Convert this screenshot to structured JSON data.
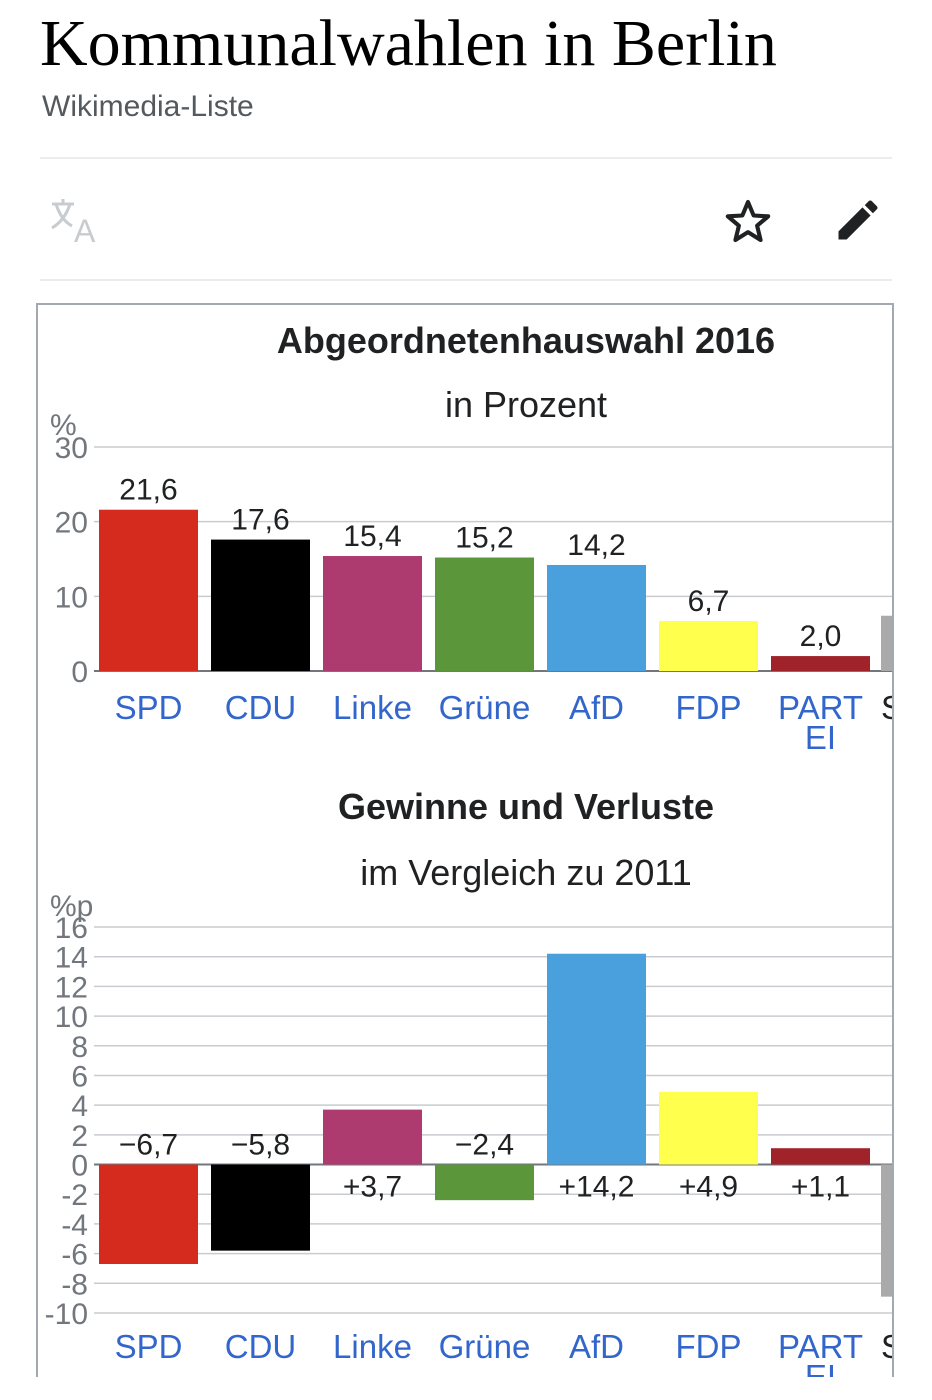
{
  "page": {
    "title": "Kommunalwahlen in Berlin",
    "description": "Wikimedia-Liste"
  },
  "toolbar": {
    "icons": [
      "translate-icon",
      "star-icon",
      "edit-icon"
    ]
  },
  "colors": {
    "SPD": "#d52b1e",
    "CDU": "#000000",
    "Linke": "#ae3b70",
    "Grüne": "#5b973a",
    "AfD": "#4a9fdd",
    "FDP": "#ffff4d",
    "PARTEI": "#a0232a",
    "Sonstige": "#aaaaaa",
    "link": "#3366cc"
  },
  "chart_data": [
    {
      "type": "bar",
      "title": "Abgeordnetenhauswahl 2016",
      "subtitle": "in Prozent",
      "ylabel": "%",
      "ylim": [
        0,
        30
      ],
      "yticks": [
        "0",
        "10",
        "20",
        "30"
      ],
      "categories": [
        "SPD",
        "CDU",
        "Linke",
        "Grüne",
        "AfD",
        "FDP",
        "PARTEI",
        "S"
      ],
      "category_labels": [
        "SPD",
        "CDU",
        "Linke",
        "Grüne",
        "AfD",
        "FDP",
        "PART\nEI",
        "S"
      ],
      "values": [
        21.6,
        17.6,
        15.4,
        15.2,
        14.2,
        6.7,
        2.0,
        7.4
      ],
      "value_labels": [
        "21,6",
        "17,6",
        "15,4",
        "15,2",
        "14,2",
        "6,7",
        "2,0",
        ""
      ]
    },
    {
      "type": "bar",
      "title": "Gewinne und Verluste",
      "subtitle": "im Vergleich zu 2011",
      "ylabel": "%p",
      "ylim": [
        -10,
        16
      ],
      "yticks": [
        "-10",
        "-8",
        "-6",
        "-4",
        "-2",
        "0",
        "2",
        "4",
        "6",
        "8",
        "10",
        "12",
        "14",
        "16"
      ],
      "categories": [
        "SPD",
        "CDU",
        "Linke",
        "Grüne",
        "AfD",
        "FDP",
        "PARTEI",
        "S"
      ],
      "category_labels": [
        "SPD",
        "CDU",
        "Linke",
        "Grüne",
        "AfD",
        "FDP",
        "PART\nEI",
        "S"
      ],
      "values": [
        -6.7,
        -5.8,
        3.7,
        -2.4,
        14.2,
        4.9,
        1.1,
        -8.9
      ],
      "value_labels": [
        "−6,7",
        "−5,8",
        "+3,7",
        "−2,4",
        "+14,2",
        "+4,9",
        "+1,1",
        ""
      ]
    }
  ]
}
